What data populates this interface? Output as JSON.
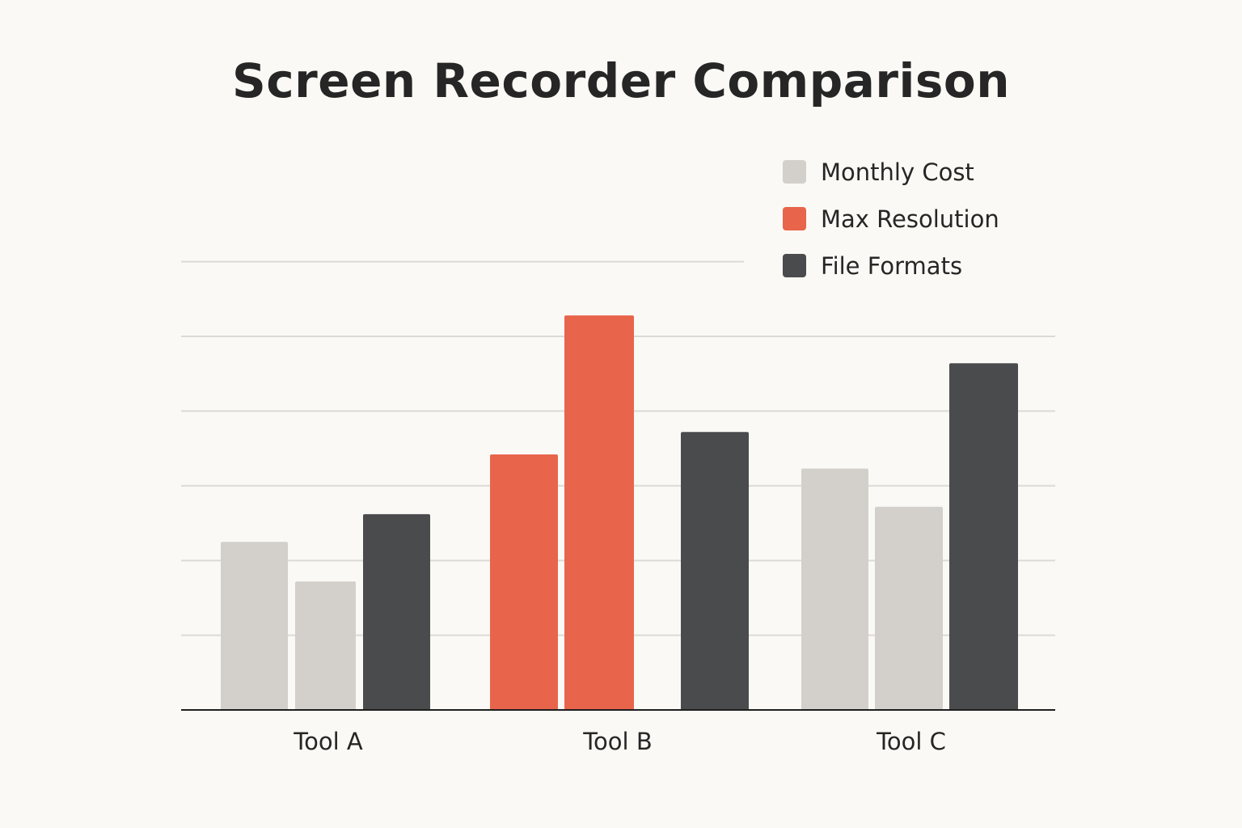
{
  "chart_data": {
    "type": "bar",
    "title": "Screen Recorder Comparison",
    "xlabel": "",
    "ylabel": "",
    "categories": [
      "Tool A",
      "Tool B",
      "Tool C"
    ],
    "ylim": [
      0,
      6
    ],
    "grid": true,
    "legend_position": "top-right",
    "legend": [
      {
        "name": "Monthly Cost",
        "color": "#d3d0cb"
      },
      {
        "name": "Max Resolution",
        "color": "#e8644b"
      },
      {
        "name": "File Formats",
        "color": "#4a4b4d"
      }
    ],
    "groups": [
      {
        "category": "Tool A",
        "bars": [
          {
            "value": 2.25,
            "color": "#d3d0cb"
          },
          {
            "value": 1.72,
            "color": "#d3d0cb"
          },
          {
            "value": 2.62,
            "color": "#4a4b4d"
          }
        ]
      },
      {
        "category": "Tool B",
        "bars": [
          {
            "value": 3.42,
            "color": "#e8644b"
          },
          {
            "value": 5.28,
            "color": "#e8644b"
          },
          {
            "value": 3.72,
            "color": "#4a4b4d"
          }
        ]
      },
      {
        "category": "Tool C",
        "bars": [
          {
            "value": 3.23,
            "color": "#d3d0cb"
          },
          {
            "value": 2.72,
            "color": "#d3d0cb"
          },
          {
            "value": 4.64,
            "color": "#4a4b4d"
          }
        ]
      }
    ]
  }
}
